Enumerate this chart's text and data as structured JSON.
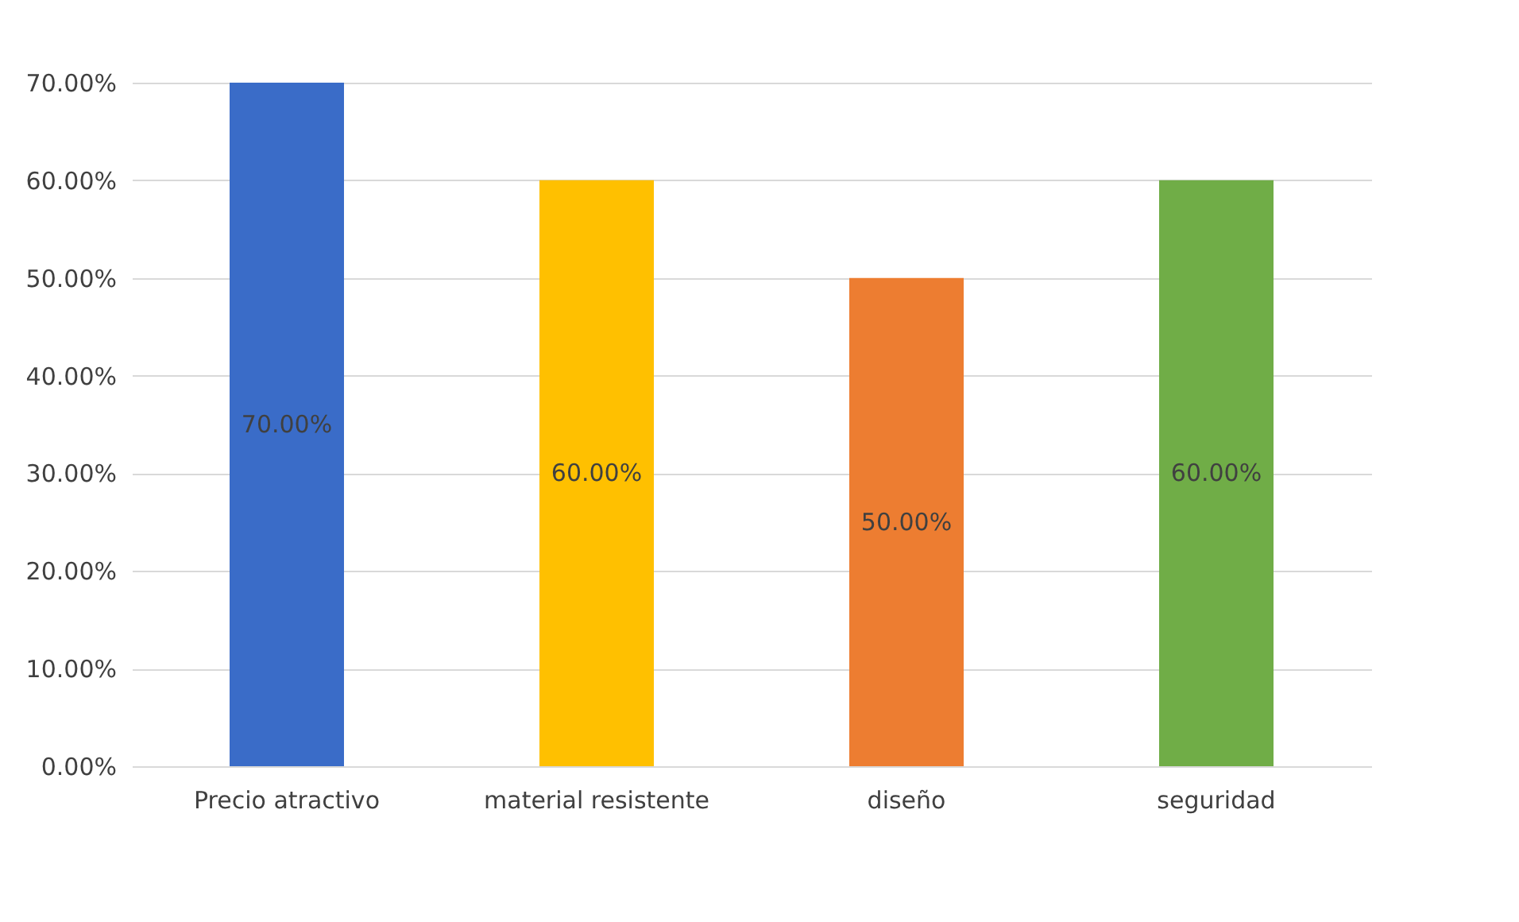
{
  "chart_data": {
    "type": "bar",
    "categories": [
      "Precio atractivo",
      "material resistente",
      "diseño",
      "seguridad"
    ],
    "values": [
      70,
      60,
      50,
      60
    ],
    "colors": [
      "#3a6cc8",
      "#ffc000",
      "#ed7d31",
      "#70ad47"
    ],
    "value_labels": [
      "70.00%",
      "60.00%",
      "50.00%",
      "60.00%"
    ],
    "ylim": [
      0,
      70
    ],
    "yticks": [
      {
        "value": 0,
        "label": "0.00%"
      },
      {
        "value": 10,
        "label": "10.00%"
      },
      {
        "value": 20,
        "label": "20.00%"
      },
      {
        "value": 30,
        "label": "30.00%"
      },
      {
        "value": 40,
        "label": "40.00%"
      },
      {
        "value": 50,
        "label": "50.00%"
      },
      {
        "value": 60,
        "label": "60.00%"
      },
      {
        "value": 70,
        "label": "70.00%"
      }
    ],
    "grid": "y"
  }
}
